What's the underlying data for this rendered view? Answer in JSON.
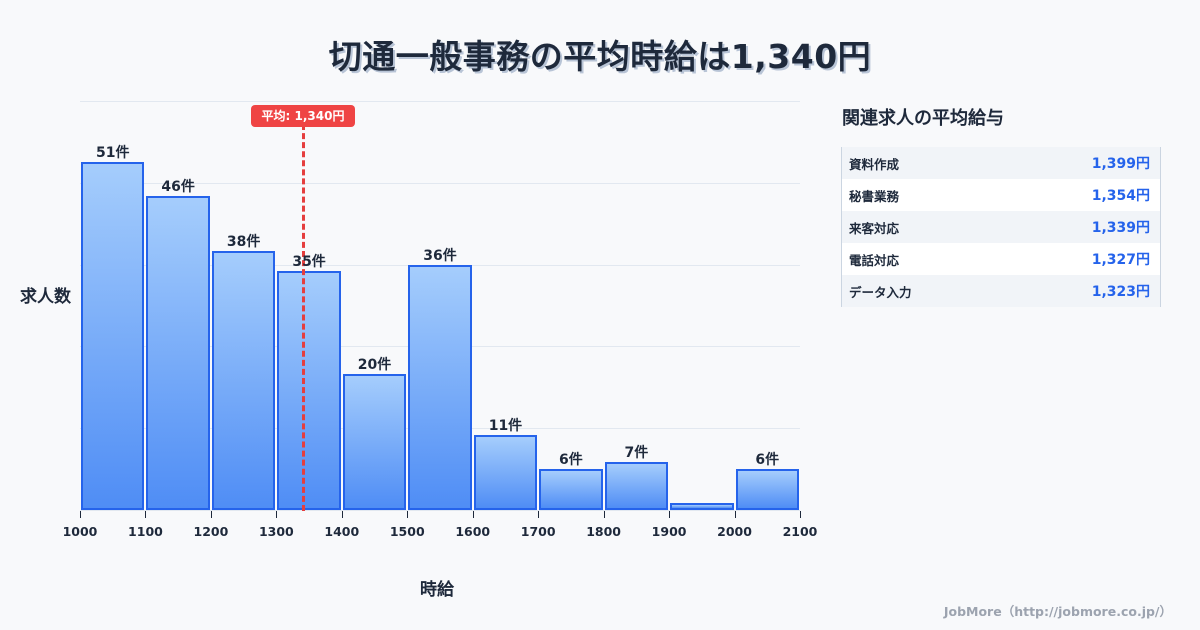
{
  "title": "切通一般事務の平均時給は1,340円",
  "chart_data": {
    "type": "bar",
    "title": "切通一般事務の平均時給は1,340円",
    "xlabel": "時給",
    "ylabel": "求人数",
    "bins": [
      {
        "from": 1000,
        "to": 1100,
        "value": 51,
        "label": "51件"
      },
      {
        "from": 1100,
        "to": 1200,
        "value": 46,
        "label": "46件"
      },
      {
        "from": 1200,
        "to": 1300,
        "value": 38,
        "label": "38件"
      },
      {
        "from": 1300,
        "to": 1400,
        "value": 35,
        "label": "35件"
      },
      {
        "from": 1400,
        "to": 1500,
        "value": 20,
        "label": "20件"
      },
      {
        "from": 1500,
        "to": 1600,
        "value": 36,
        "label": "36件"
      },
      {
        "from": 1600,
        "to": 1700,
        "value": 11,
        "label": "11件"
      },
      {
        "from": 1700,
        "to": 1800,
        "value": 6,
        "label": "6件"
      },
      {
        "from": 1800,
        "to": 1900,
        "value": 7,
        "label": "7件"
      },
      {
        "from": 1900,
        "to": 2000,
        "value": 1,
        "label": ""
      },
      {
        "from": 2000,
        "to": 2100,
        "value": 6,
        "label": "6件"
      }
    ],
    "x_ticks": [
      "1000",
      "1100",
      "1200",
      "1300",
      "1400",
      "1500",
      "1600",
      "1700",
      "1800",
      "1900",
      "2000",
      "2100"
    ],
    "xlim": [
      1000,
      2100
    ],
    "ylim": [
      0,
      60
    ],
    "grid": true,
    "mean": {
      "value": 1340,
      "label": "平均: 1,340円",
      "color": "#ef4444"
    },
    "bar_color": "#2563eb"
  },
  "side_panel": {
    "title": "関連求人の平均給与",
    "rows": [
      {
        "name": "資料作成",
        "value": "1,399円"
      },
      {
        "name": "秘書業務",
        "value": "1,354円"
      },
      {
        "name": "来客対応",
        "value": "1,339円"
      },
      {
        "name": "電話対応",
        "value": "1,327円"
      },
      {
        "name": "データ入力",
        "value": "1,323円"
      }
    ]
  },
  "footer": "JobMore（http://jobmore.co.jp/）"
}
